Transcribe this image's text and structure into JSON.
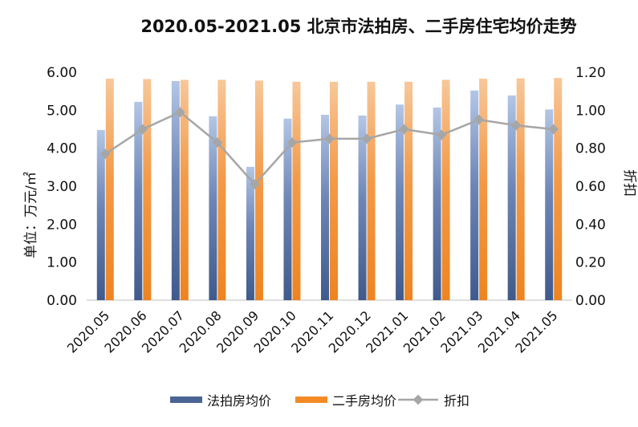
{
  "chart_data": {
    "type": "bar",
    "title": "2020.05-2021.05 北京市法拍房、二手房住宅均价走势",
    "ylabel": "单位：万元/㎡",
    "y2label": "折扣",
    "ylim": [
      0,
      6
    ],
    "y2lim": [
      0,
      1.2
    ],
    "yticks": [
      "0.00",
      "1.00",
      "2.00",
      "3.00",
      "4.00",
      "5.00",
      "6.00"
    ],
    "y2ticks": [
      "0.00",
      "0.20",
      "0.40",
      "0.60",
      "0.80",
      "1.00",
      "1.20"
    ],
    "categories": [
      "2020.05",
      "2020.06",
      "2020.07",
      "2020.08",
      "2020.09",
      "2020.10",
      "2020.11",
      "2020.12",
      "2021.01",
      "2021.02",
      "2021.03",
      "2021.04",
      "2021.05"
    ],
    "series": [
      {
        "name": "法拍房均价",
        "kind": "bar",
        "axis": "left",
        "color": "#4a6494",
        "values": [
          4.48,
          5.22,
          5.77,
          4.84,
          3.51,
          4.78,
          4.88,
          4.86,
          5.15,
          5.07,
          5.52,
          5.39,
          5.02
        ]
      },
      {
        "name": "二手房均价",
        "kind": "bar",
        "axis": "left",
        "color": "#f28b25",
        "values": [
          5.83,
          5.82,
          5.8,
          5.8,
          5.78,
          5.75,
          5.75,
          5.75,
          5.75,
          5.8,
          5.83,
          5.84,
          5.85
        ]
      },
      {
        "name": "折扣",
        "kind": "line",
        "axis": "right",
        "color": "#a6a6a6",
        "values": [
          0.77,
          0.9,
          0.99,
          0.83,
          0.61,
          0.83,
          0.85,
          0.85,
          0.9,
          0.87,
          0.95,
          0.92,
          0.9
        ]
      }
    ],
    "legend": {
      "position": "bottom",
      "labels": [
        "法拍房均价",
        "二手房均价",
        "折扣"
      ]
    },
    "grid": false
  }
}
